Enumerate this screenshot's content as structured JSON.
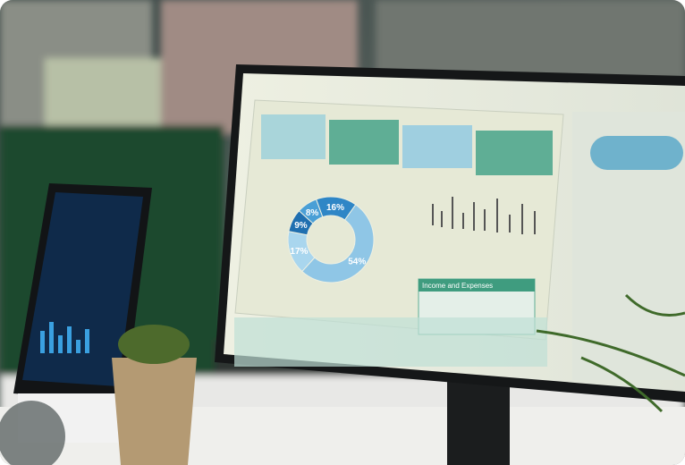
{
  "screen": {
    "panel_title": "Income and Expenses",
    "donut": {
      "values": [
        16,
        54,
        17,
        9,
        8
      ],
      "value_labels": [
        "16%",
        "54%",
        "17%",
        "9%",
        "8%"
      ],
      "colors": [
        "#2f86c6",
        "#8fc6e6",
        "#a9d6ee",
        "#1f6fb0",
        "#4a9fd6"
      ]
    }
  }
}
